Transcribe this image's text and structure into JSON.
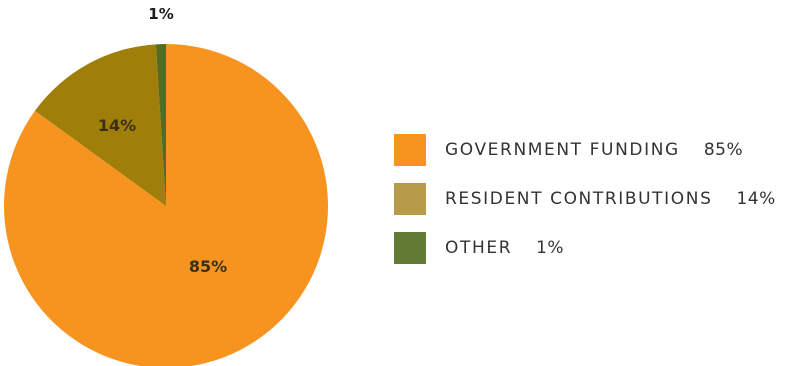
{
  "chart_data": {
    "type": "pie",
    "title": "",
    "slices": [
      {
        "name": "GOVERNMENT FUNDING",
        "value": 85,
        "label": "85%",
        "legend_value": "85%",
        "color": "#f7941f"
      },
      {
        "name": "RESIDENT CONTRIBUTIONS",
        "value": 14,
        "label": "14%",
        "legend_value": "14%",
        "color": "#a07e0a"
      },
      {
        "name": "OTHER",
        "value": 1,
        "label": "1%",
        "legend_value": "1%",
        "color": "#566b22"
      }
    ],
    "legend_colors": [
      "#f7941f",
      "#b89a4b",
      "#637a33"
    ],
    "legend_position": "right"
  }
}
